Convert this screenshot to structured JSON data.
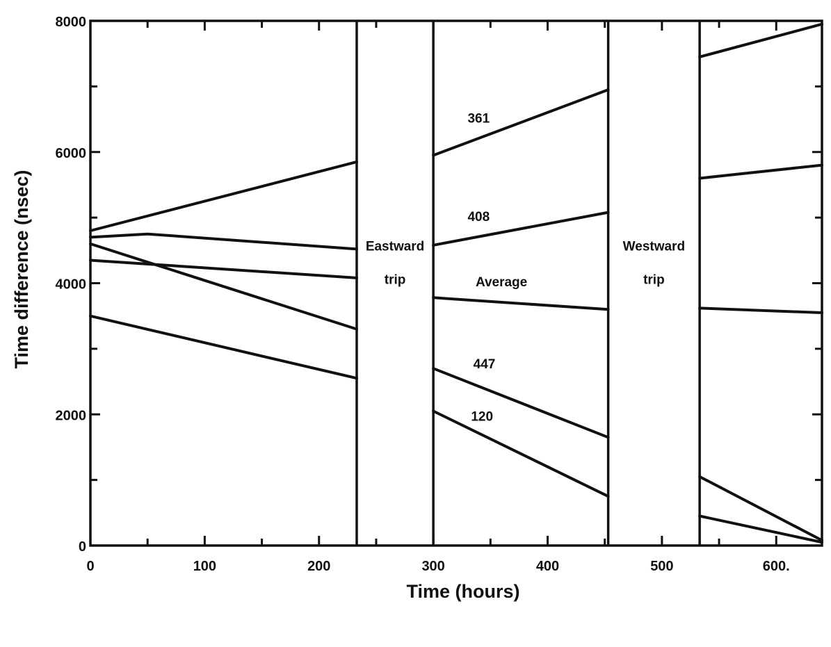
{
  "chart_data": {
    "type": "line",
    "title": "",
    "xlabel": "Time (hours)",
    "ylabel": "Time difference (nsec)",
    "xlim": [
      0,
      640
    ],
    "ylim": [
      0,
      8000
    ],
    "x_ticks": [
      0,
      100,
      200,
      300,
      400,
      500,
      600
    ],
    "x_tick_labels": [
      "0",
      "100",
      "200",
      "300",
      "400",
      "500",
      "600."
    ],
    "y_ticks": [
      0,
      2000,
      4000,
      6000,
      8000
    ],
    "y_tick_labels": [
      "0",
      "2000",
      "4000",
      "6000",
      "8000"
    ],
    "grid": false,
    "trips": [
      {
        "label_line1": "Eastward",
        "label_line2": "trip",
        "x_start": 233,
        "x_end": 300
      },
      {
        "label_line1": "Westward",
        "label_line2": "trip",
        "x_start": 453,
        "x_end": 533
      }
    ],
    "series": [
      {
        "name": "361",
        "segments": [
          {
            "x": [
              0,
              233
            ],
            "y": [
              4800,
              5850
            ]
          },
          {
            "x": [
              300,
              453
            ],
            "y": [
              5950,
              6950
            ]
          },
          {
            "x": [
              533,
              640
            ],
            "y": [
              7450,
              7950
            ]
          }
        ]
      },
      {
        "name": "408",
        "segments": [
          {
            "x": [
              0,
              50,
              233
            ],
            "y": [
              4700,
              4750,
              4520
            ]
          },
          {
            "x": [
              300,
              453
            ],
            "y": [
              4580,
              5080
            ]
          },
          {
            "x": [
              533,
              640
            ],
            "y": [
              5600,
              5800
            ]
          }
        ]
      },
      {
        "name": "Average",
        "segments": [
          {
            "x": [
              0,
              233
            ],
            "y": [
              4350,
              4080
            ]
          },
          {
            "x": [
              300,
              453
            ],
            "y": [
              3780,
              3600
            ]
          },
          {
            "x": [
              533,
              640
            ],
            "y": [
              3620,
              3550
            ]
          }
        ]
      },
      {
        "name": "447",
        "segments": [
          {
            "x": [
              0,
              233
            ],
            "y": [
              4600,
              3300
            ]
          },
          {
            "x": [
              300,
              453
            ],
            "y": [
              2700,
              1650
            ]
          },
          {
            "x": [
              533,
              640
            ],
            "y": [
              1050,
              80
            ]
          }
        ]
      },
      {
        "name": "120",
        "segments": [
          {
            "x": [
              0,
              233
            ],
            "y": [
              3500,
              2550
            ]
          },
          {
            "x": [
              300,
              453
            ],
            "y": [
              2050,
              750
            ]
          },
          {
            "x": [
              533,
              640
            ],
            "y": [
              450,
              50
            ]
          }
        ]
      }
    ],
    "annotations": [
      {
        "text": "361",
        "x": 330,
        "y": 6450
      },
      {
        "text": "408",
        "x": 330,
        "y": 4950
      },
      {
        "text": "Average",
        "x": 337,
        "y": 3950
      },
      {
        "text": "447",
        "x": 335,
        "y": 2700
      },
      {
        "text": "120",
        "x": 333,
        "y": 1900
      }
    ]
  }
}
